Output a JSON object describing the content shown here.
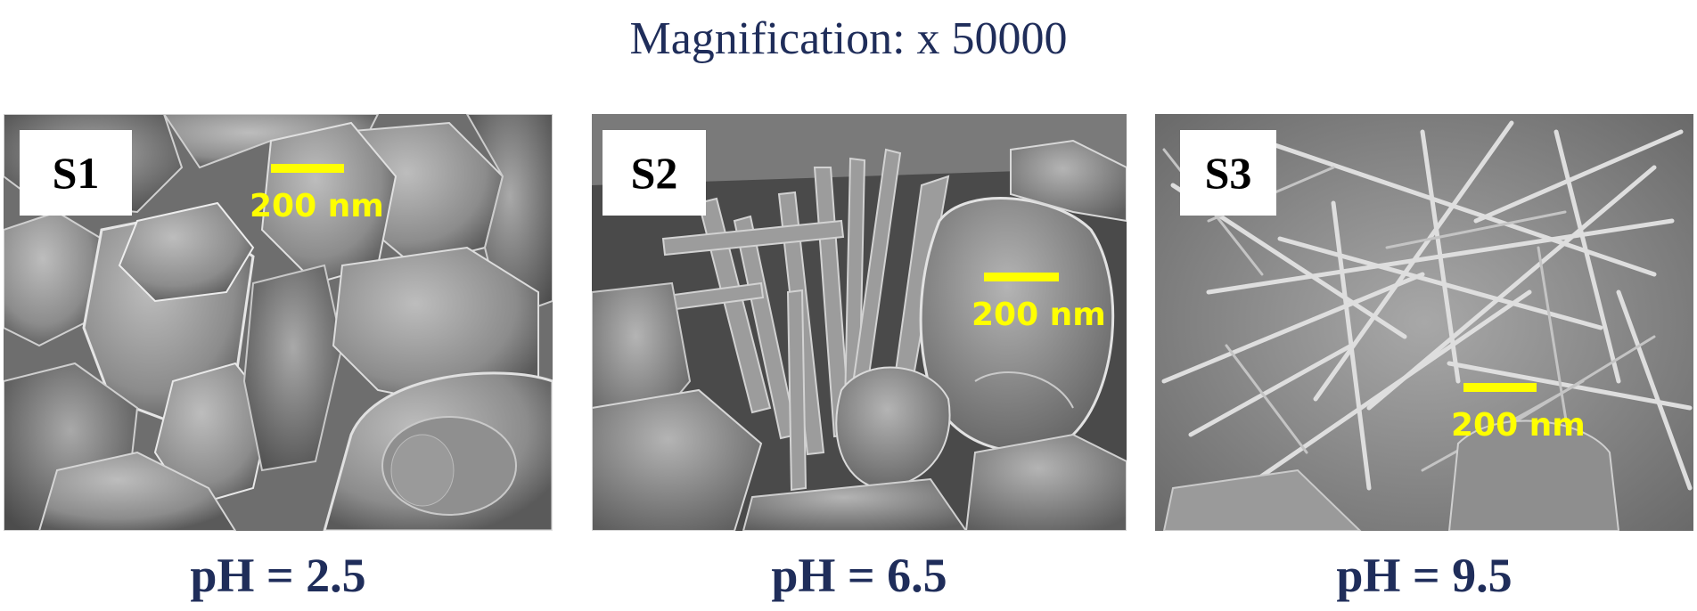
{
  "title": "Magnification: x 50000",
  "panels": [
    {
      "sample": "S1",
      "scale_label": "200 nm",
      "caption": "pH = 2.5",
      "morphology": "rounded-grains"
    },
    {
      "sample": "S2",
      "scale_label": "200 nm",
      "caption": "pH = 6.5",
      "morphology": "rods-and-plates"
    },
    {
      "sample": "S3",
      "scale_label": "200 nm",
      "caption": "pH = 9.5",
      "morphology": "needle-network"
    }
  ],
  "colors": {
    "title": "#1f2d5a",
    "scale_bar": "#ffff00",
    "label_box": "#ffffff"
  }
}
